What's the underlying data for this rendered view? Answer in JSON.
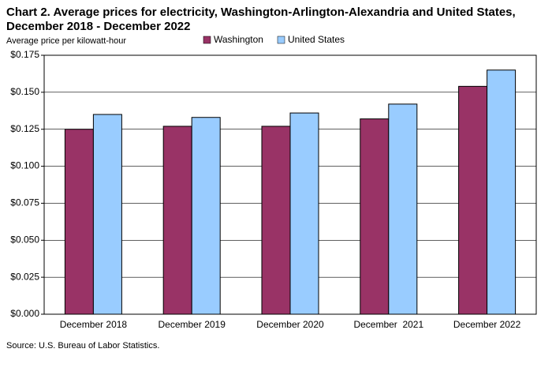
{
  "chart_data": {
    "type": "bar",
    "title": [
      "Chart 2. Average prices for electricity, Washington-Arlington-Alexandria and United States,",
      "December 2018 - December 2022"
    ],
    "y_label": "Average price per kilowatt-hour",
    "source": "Source: U.S. Bureau of Labor Statistics.",
    "categories": [
      "December 2018",
      "December 2019",
      "December 2020",
      "December  2021",
      "December 2022"
    ],
    "series": [
      {
        "name": "Washington",
        "color": "#993366",
        "values": [
          0.125,
          0.127,
          0.127,
          0.132,
          0.154
        ]
      },
      {
        "name": "United States",
        "color": "#99ccff",
        "values": [
          0.135,
          0.133,
          0.136,
          0.142,
          0.165
        ]
      }
    ],
    "ylim": [
      0,
      0.175
    ],
    "yticks": [
      {
        "value": 0,
        "label": "$0.000"
      },
      {
        "value": 0.025,
        "label": "$0.025"
      },
      {
        "value": 0.05,
        "label": "$0.050"
      },
      {
        "value": 0.075,
        "label": "$0.075"
      },
      {
        "value": 0.1,
        "label": "$0.100"
      },
      {
        "value": 0.125,
        "label": "$0.125"
      },
      {
        "value": 0.15,
        "label": "$0.150"
      },
      {
        "value": 0.175,
        "label": "$0.175"
      }
    ],
    "grid": true
  }
}
